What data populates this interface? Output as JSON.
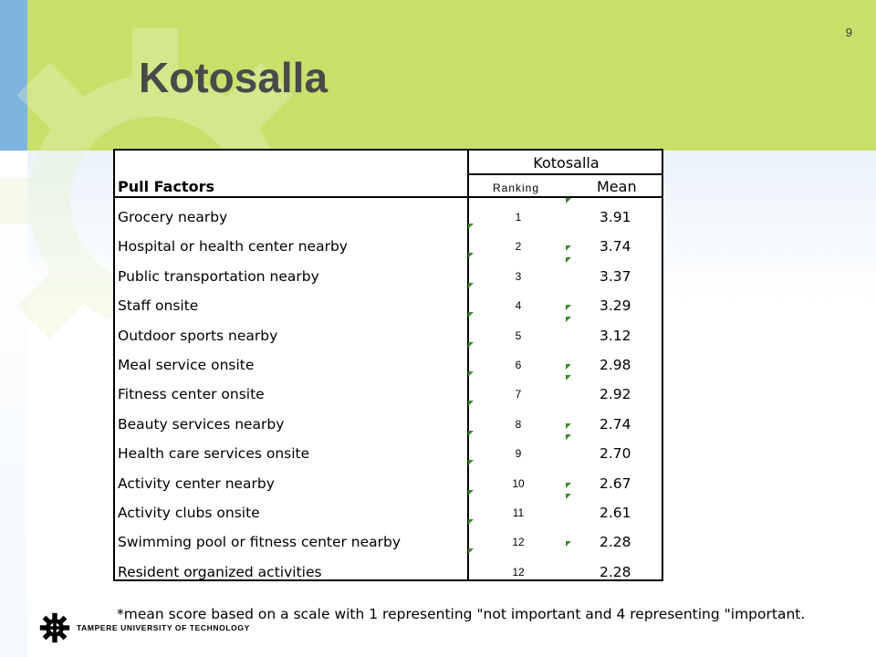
{
  "slide": {
    "number": "9",
    "title": "Kotosalla"
  },
  "table": {
    "group_header": "Kotosalla",
    "col_factor": "Pull Factors",
    "col_ranking": "Ranking",
    "col_mean": "Mean",
    "rows": [
      {
        "factor": "Grocery nearby",
        "ranking": "1",
        "mean": "3.91"
      },
      {
        "factor": "Hospital or health center nearby",
        "ranking": "2",
        "mean": "3.74"
      },
      {
        "factor": "Public transportation nearby",
        "ranking": "3",
        "mean": "3.37"
      },
      {
        "factor": "Staff onsite",
        "ranking": "4",
        "mean": "3.29"
      },
      {
        "factor": "Outdoor sports nearby",
        "ranking": "5",
        "mean": "3.12"
      },
      {
        "factor": "Meal service onsite",
        "ranking": "6",
        "mean": "2.98"
      },
      {
        "factor": "Fitness center onsite",
        "ranking": "7",
        "mean": "2.92"
      },
      {
        "factor": "Beauty services nearby",
        "ranking": "8",
        "mean": "2.74"
      },
      {
        "factor": "Health care services onsite",
        "ranking": "9",
        "mean": "2.70"
      },
      {
        "factor": "Activity center nearby",
        "ranking": "10",
        "mean": "2.67"
      },
      {
        "factor": "Activity clubs onsite",
        "ranking": "11",
        "mean": "2.61"
      },
      {
        "factor": "Swimming pool or fitness center nearby",
        "ranking": "12",
        "mean": "2.28"
      },
      {
        "factor": "Resident organized activities",
        "ranking": "12",
        "mean": "2.28"
      }
    ]
  },
  "footnote": "*mean score based on a scale with 1 representing \"not important and 4 representing \"important.",
  "footer": {
    "university": "TAMPERE UNIVERSITY OF TECHNOLOGY",
    "logo_icon": "tut-gear-logo-icon"
  },
  "colors": {
    "header_green": "#c8e06a",
    "side_blue": "#7fb3e0",
    "marker_green": "#3a8a2a",
    "title_gray": "#4a4a4a"
  }
}
